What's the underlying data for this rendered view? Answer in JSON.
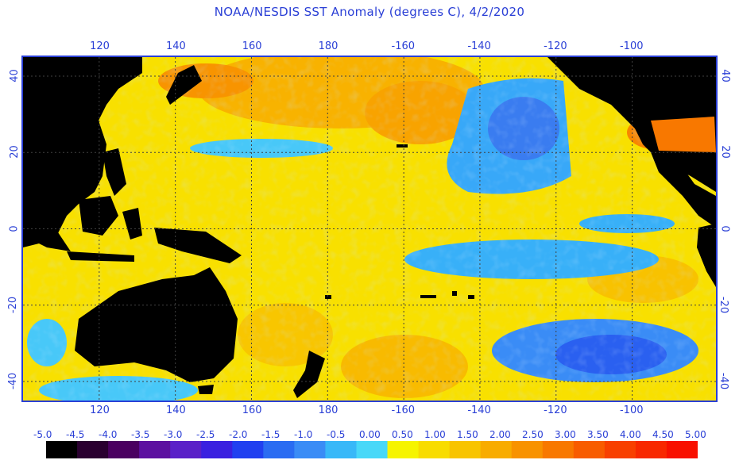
{
  "title": "NOAA/NESDIS SST Anomaly (degrees C), 4/2/2020",
  "colors": {
    "frame": "#2a3fd6",
    "land": "#000000",
    "grid": "#3a3a3a"
  },
  "chart_data": {
    "type": "heatmap",
    "title": "NOAA/NESDIS SST Anomaly (degrees C), 4/2/2020",
    "x_ticks": [
      "120",
      "140",
      "160",
      "180",
      "-160",
      "-140",
      "-120",
      "-100"
    ],
    "y_ticks": [
      "40",
      "20",
      "0",
      "-20",
      "-40"
    ],
    "lon_range": [
      100,
      282
    ],
    "lat_range": [
      -45,
      45
    ],
    "x_tick_values": [
      120,
      140,
      160,
      180,
      200,
      220,
      240,
      260
    ],
    "y_tick_values": [
      40,
      20,
      0,
      -20,
      -40
    ],
    "grid": true,
    "colorbar": {
      "labels": [
        "-5.0",
        "-4.5",
        "-4.0",
        "-3.5",
        "-3.0",
        "-2.5",
        "-2.0",
        "-1.5",
        "-1.0",
        "-0.5",
        "0.00",
        "0.50",
        "1.00",
        "1.50",
        "2.00",
        "2.50",
        "3.00",
        "3.50",
        "4.00",
        "4.50",
        "5.00"
      ],
      "colors": [
        "#000000",
        "#2a0030",
        "#4a0060",
        "#5c10a0",
        "#5a20c8",
        "#3a20e0",
        "#2040f0",
        "#2a6cf2",
        "#3a8cf6",
        "#38b8f8",
        "#48d8f8",
        "#f6f400",
        "#f8dc00",
        "#f8c400",
        "#f8ac00",
        "#f89200",
        "#f87800",
        "#f85c00",
        "#f84000",
        "#f82800",
        "#f81000"
      ]
    }
  }
}
